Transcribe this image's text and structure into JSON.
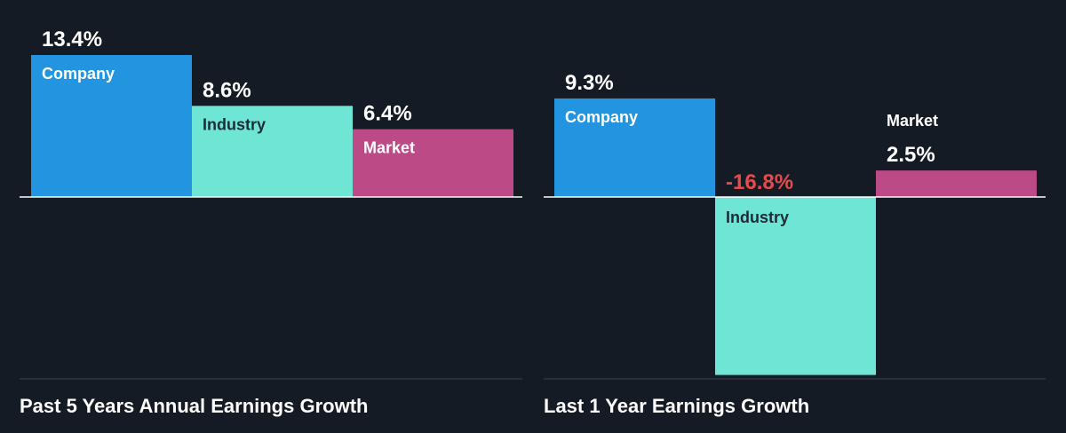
{
  "colors": {
    "background": "#151b24",
    "company": "#2394df",
    "industry": "#6fe5d6",
    "market": "#bc4a87",
    "axis": "#ffffff",
    "positive_text": "#ffffff",
    "negative_text": "#e64b4b",
    "dark_text": "#1e2b37"
  },
  "chart_data": [
    {
      "type": "bar",
      "title": "Past 5 Years Annual Earnings Growth",
      "categories": [
        "Company",
        "Industry",
        "Market"
      ],
      "values": [
        13.4,
        8.6,
        6.4
      ],
      "labels": [
        "13.4%",
        "8.6%",
        "6.4%"
      ],
      "unit": "%",
      "ylim": [
        -16.8,
        13.4
      ]
    },
    {
      "type": "bar",
      "title": "Last 1 Year Earnings Growth",
      "categories": [
        "Company",
        "Industry",
        "Market"
      ],
      "values": [
        9.3,
        -16.8,
        2.5
      ],
      "labels": [
        "9.3%",
        "-16.8%",
        "2.5%"
      ],
      "unit": "%",
      "ylim": [
        -16.8,
        13.4
      ]
    }
  ]
}
